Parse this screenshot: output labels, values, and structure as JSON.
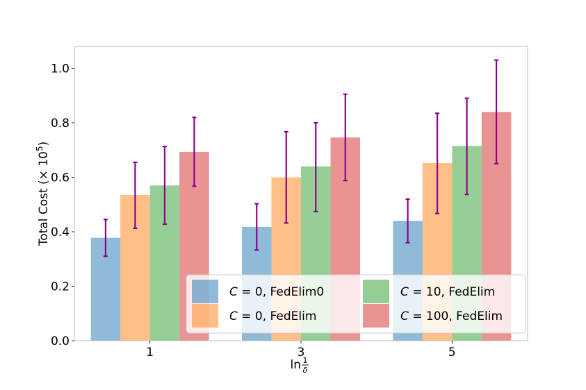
{
  "chart_data": {
    "type": "bar",
    "title": "",
    "xlabel": "ln",
    "xlabel_frac_num": "1",
    "xlabel_frac_den": "δ",
    "ylabel": "Total Cost  (× 10",
    "ylabel_exp": "5",
    "ylabel_close": ")",
    "categories": [
      "1",
      "3",
      "5"
    ],
    "ylim": [
      0,
      1.08
    ],
    "yticks": [
      "0.0",
      "0.2",
      "0.4",
      "0.6",
      "0.8",
      "1.0"
    ],
    "ytick_values": [
      0.0,
      0.2,
      0.4,
      0.6,
      0.8,
      1.0
    ],
    "legend_position": "lower-right",
    "series": [
      {
        "name": "C = 0, FedElim0",
        "legend_c": "C",
        "legend_rest": " = 0, FedElim0",
        "color": "#1f77b4",
        "values": [
          0.378,
          0.418,
          0.44
        ],
        "err_low": [
          0.31,
          0.333,
          0.36
        ],
        "err_high": [
          0.445,
          0.503,
          0.52
        ]
      },
      {
        "name": "C = 0, FedElim",
        "legend_c": "C",
        "legend_rest": " = 0, FedElim",
        "color": "#ff7f0e",
        "values": [
          0.535,
          0.6,
          0.652
        ],
        "err_low": [
          0.413,
          0.432,
          0.467
        ],
        "err_high": [
          0.655,
          0.767,
          0.835
        ]
      },
      {
        "name": "C = 10, FedElim",
        "legend_c": "C",
        "legend_rest": " = 10, FedElim",
        "color": "#2ca02c",
        "values": [
          0.57,
          0.64,
          0.715
        ],
        "err_low": [
          0.428,
          0.474,
          0.537
        ],
        "err_high": [
          0.713,
          0.8,
          0.89
        ]
      },
      {
        "name": "C = 100, FedElim",
        "legend_c": "C",
        "legend_rest": " = 100, FedElim",
        "color": "#d62728",
        "values": [
          0.693,
          0.746,
          0.84
        ],
        "err_low": [
          0.567,
          0.588,
          0.65
        ],
        "err_high": [
          0.82,
          0.905,
          1.03
        ]
      }
    ],
    "error_bar_color": "#8b008b"
  }
}
